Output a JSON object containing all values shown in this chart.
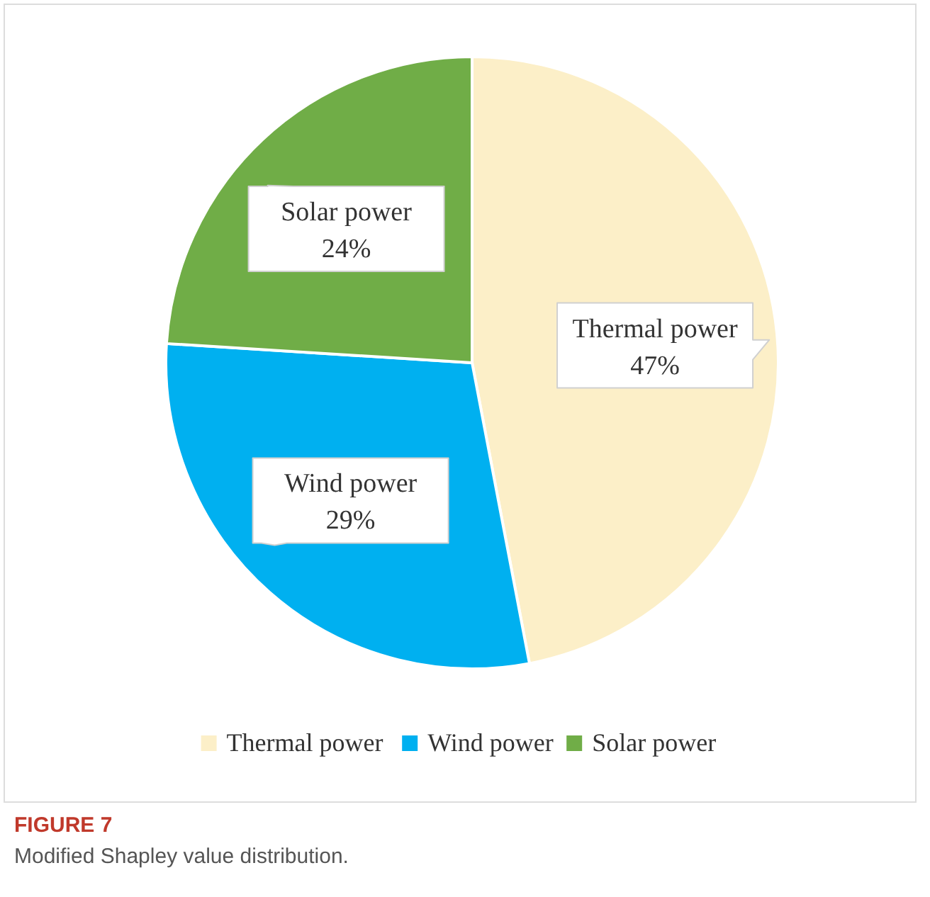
{
  "chart_data": {
    "type": "pie",
    "title": "FIGURE 7",
    "subtitle": "Modified Shapley value distribution.",
    "categories": [
      "Thermal power",
      "Wind power",
      "Solar power"
    ],
    "values": [
      47,
      29,
      24
    ],
    "colors": [
      "#fcefc8",
      "#00b0f0",
      "#70ad47"
    ],
    "value_labels": [
      "47%",
      "29%",
      "24%"
    ],
    "legend": "bottom"
  }
}
